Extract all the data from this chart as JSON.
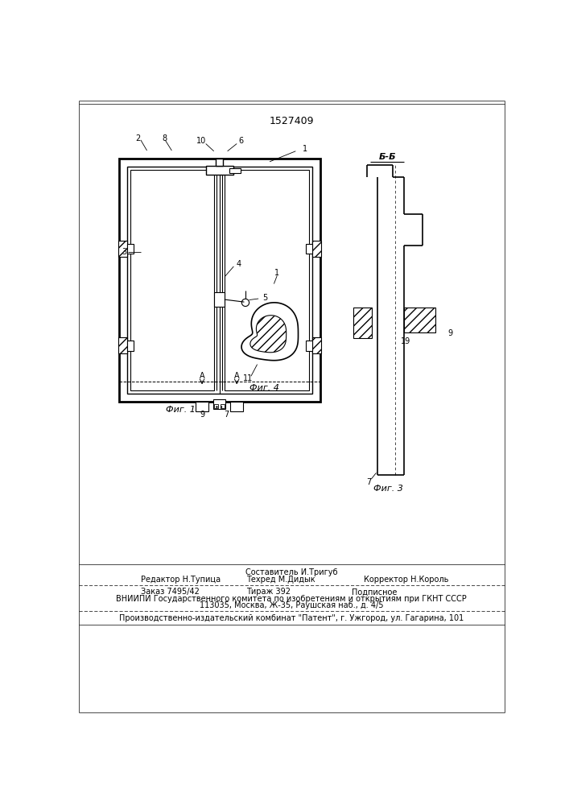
{
  "title": "1527409",
  "fig1_label": "Фиг. 1",
  "fig3_label": "Фиг. 3",
  "fig4_label": "Фиг. 4",
  "section_label": "Б-Б",
  "bg_color": "#ffffff",
  "line_color": "#000000",
  "footer_col1_line1": "Редактор Н.Тупица",
  "footer_col2_line1": "Составитель И.Тригуб",
  "footer_col2_line2": "Техред М.Дидык",
  "footer_col3_line1": "Корректор Н.Король",
  "footer2_left": "Заказ 7495/42",
  "footer2_center": "Тираж 392",
  "footer2_right": "Подписное",
  "footer3": "ВНИИПИ Государственного комитета по изобретениям и открытиям при ГКНТ СССР",
  "footer4": "113035, Москва, Ж-35, Раушская наб., д. 4/5",
  "footer5": "Производственно-издательский комбинат \"Патент\", г. Ужгород, ул. Гагарина, 101"
}
